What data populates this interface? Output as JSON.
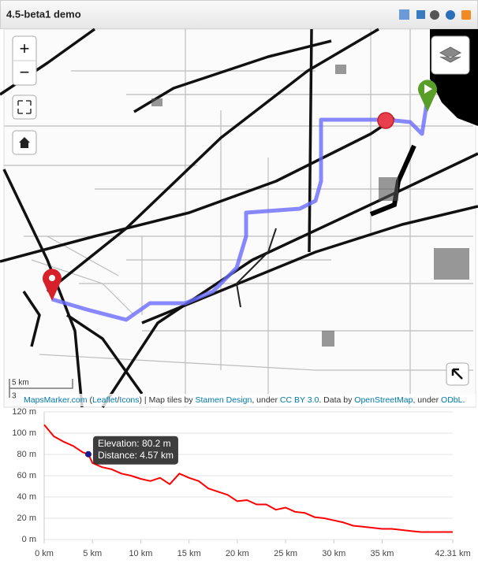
{
  "header": {
    "title": "4.5-beta1 demo"
  },
  "map": {
    "controls": {
      "zoom_in": "+",
      "zoom_out": "−"
    },
    "scale": {
      "metric": "5 km",
      "imperial": "3"
    },
    "attribution": [
      "MapsMarker.com",
      " (",
      "Leaflet",
      "/",
      "Icons",
      ") | Map tiles by ",
      "Stamen Design",
      ", under ",
      "CC BY 3.0",
      ". Data by ",
      "OpenStreetMap",
      ", under ",
      "ODbL",
      "."
    ]
  },
  "chart_data": {
    "type": "line",
    "color": "#ff0000",
    "x": [
      0,
      1,
      2,
      3,
      4,
      4.57,
      5,
      6,
      7,
      8,
      9,
      10,
      11,
      12,
      13,
      14,
      15,
      16,
      17,
      18,
      19,
      20,
      21,
      22,
      23,
      24,
      25,
      26,
      27,
      28,
      29,
      30,
      31,
      32,
      33,
      34,
      35,
      36,
      37,
      38,
      39,
      40,
      41,
      42.31
    ],
    "values": [
      108,
      97,
      92,
      88,
      82,
      80.2,
      72,
      68,
      66,
      62,
      60,
      57,
      55,
      58,
      52,
      62,
      58,
      55,
      48,
      45,
      42,
      36,
      37,
      33,
      33,
      28,
      30,
      26,
      25,
      21,
      20,
      18,
      16,
      13,
      12,
      11,
      10,
      10,
      9,
      8,
      7,
      7,
      7,
      7
    ],
    "xlim": [
      0,
      42.31
    ],
    "ylim": [
      0,
      120
    ],
    "xticks": [
      {
        "value": 0,
        "label": "0 km"
      },
      {
        "value": 5,
        "label": "5 km"
      },
      {
        "value": 10,
        "label": "10 km"
      },
      {
        "value": 15,
        "label": "15 km"
      },
      {
        "value": 20,
        "label": "20 km"
      },
      {
        "value": 25,
        "label": "25 km"
      },
      {
        "value": 30,
        "label": "30 km"
      },
      {
        "value": 35,
        "label": "35 km"
      },
      {
        "value": 42.31,
        "label": "42.31 km"
      }
    ],
    "yticks": [
      {
        "value": 0,
        "label": "0 m"
      },
      {
        "value": 20,
        "label": "20 m"
      },
      {
        "value": 40,
        "label": "40 m"
      },
      {
        "value": 60,
        "label": "60 m"
      },
      {
        "value": 80,
        "label": "80 m"
      },
      {
        "value": 100,
        "label": "100 m"
      },
      {
        "value": 120,
        "label": "120 m"
      }
    ],
    "grid": true,
    "tooltip": {
      "x": 4.57,
      "y": 80.2,
      "lines": [
        "Elevation: 80.2 m",
        "Distance: 4.57 km"
      ]
    }
  }
}
